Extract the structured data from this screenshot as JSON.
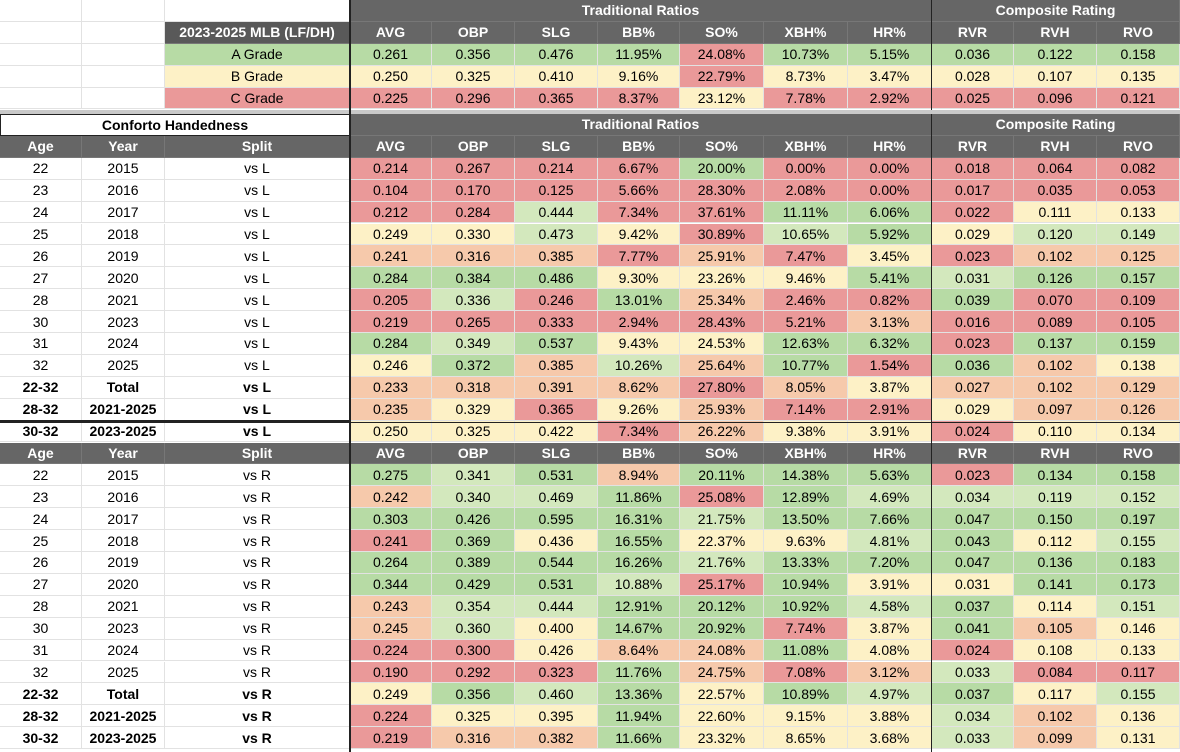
{
  "colors": {
    "green": "#b7dba5",
    "lgreen": "#d3e8bd",
    "yellow": "#fdf1c6",
    "peach": "#f6c9ab",
    "red": "#ea9999",
    "header": "#666666"
  },
  "grade_table": {
    "title": "2023-2025 MLB (LF/DH)",
    "section_headers": [
      "Traditional Ratios",
      "Composite Rating"
    ],
    "columns": [
      "AVG",
      "OBP",
      "SLG",
      "BB%",
      "SO%",
      "XBH%",
      "HR%",
      "RVR",
      "RVH",
      "RVO"
    ],
    "rows": [
      {
        "label": "A Grade",
        "color": "green",
        "values": [
          "0.261",
          "0.356",
          "0.476",
          "11.95%",
          "24.08%",
          "10.73%",
          "5.15%",
          "0.036",
          "0.122",
          "0.158"
        ],
        "colors": [
          "green",
          "green",
          "green",
          "green",
          "red",
          "green",
          "green",
          "green",
          "green",
          "green"
        ]
      },
      {
        "label": "B Grade",
        "color": "yellow",
        "values": [
          "0.250",
          "0.325",
          "0.410",
          "9.16%",
          "22.79%",
          "8.73%",
          "3.47%",
          "0.028",
          "0.107",
          "0.135"
        ],
        "colors": [
          "yellow",
          "yellow",
          "yellow",
          "yellow",
          "red",
          "yellow",
          "yellow",
          "yellow",
          "yellow",
          "yellow"
        ]
      },
      {
        "label": "C Grade",
        "color": "red",
        "values": [
          "0.225",
          "0.296",
          "0.365",
          "8.37%",
          "23.12%",
          "7.78%",
          "2.92%",
          "0.025",
          "0.096",
          "0.121"
        ],
        "colors": [
          "red",
          "red",
          "red",
          "red",
          "yellow",
          "red",
          "red",
          "red",
          "red",
          "red"
        ]
      }
    ]
  },
  "handedness": {
    "title": "Conforto Handedness",
    "section_headers": [
      "Traditional Ratios",
      "Composite Rating"
    ],
    "blocks": [
      {
        "headers": [
          "Age",
          "Year",
          "Split",
          "AVG",
          "OBP",
          "SLG",
          "BB%",
          "SO%",
          "XBH%",
          "HR%",
          "RVR",
          "RVH",
          "RVO"
        ],
        "rows": [
          {
            "age": "22",
            "year": "2015",
            "split": "vs L",
            "values": [
              "0.214",
              "0.267",
              "0.214",
              "6.67%",
              "20.00%",
              "0.00%",
              "0.00%",
              "0.018",
              "0.064",
              "0.082"
            ],
            "colors": [
              "red",
              "red",
              "red",
              "red",
              "green",
              "red",
              "red",
              "red",
              "red",
              "red"
            ]
          },
          {
            "age": "23",
            "year": "2016",
            "split": "vs L",
            "values": [
              "0.104",
              "0.170",
              "0.125",
              "5.66%",
              "28.30%",
              "2.08%",
              "0.00%",
              "0.017",
              "0.035",
              "0.053"
            ],
            "colors": [
              "red",
              "red",
              "red",
              "red",
              "red",
              "red",
              "red",
              "red",
              "red",
              "red"
            ]
          },
          {
            "age": "24",
            "year": "2017",
            "split": "vs L",
            "values": [
              "0.212",
              "0.284",
              "0.444",
              "7.34%",
              "37.61%",
              "11.11%",
              "6.06%",
              "0.022",
              "0.111",
              "0.133"
            ],
            "colors": [
              "red",
              "red",
              "lgreen",
              "red",
              "red",
              "green",
              "green",
              "red",
              "yellow",
              "yellow"
            ]
          },
          {
            "age": "25",
            "year": "2018",
            "split": "vs L",
            "values": [
              "0.249",
              "0.330",
              "0.473",
              "9.42%",
              "30.89%",
              "10.65%",
              "5.92%",
              "0.029",
              "0.120",
              "0.149"
            ],
            "colors": [
              "yellow",
              "yellow",
              "lgreen",
              "yellow",
              "red",
              "lgreen",
              "green",
              "yellow",
              "lgreen",
              "lgreen"
            ]
          },
          {
            "age": "26",
            "year": "2019",
            "split": "vs L",
            "values": [
              "0.241",
              "0.316",
              "0.385",
              "7.77%",
              "25.91%",
              "7.47%",
              "3.45%",
              "0.023",
              "0.102",
              "0.125"
            ],
            "colors": [
              "peach",
              "peach",
              "peach",
              "red",
              "peach",
              "red",
              "yellow",
              "red",
              "peach",
              "peach"
            ]
          },
          {
            "age": "27",
            "year": "2020",
            "split": "vs L",
            "values": [
              "0.284",
              "0.384",
              "0.486",
              "9.30%",
              "23.26%",
              "9.46%",
              "5.41%",
              "0.031",
              "0.126",
              "0.157"
            ],
            "colors": [
              "green",
              "green",
              "green",
              "yellow",
              "yellow",
              "yellow",
              "green",
              "lgreen",
              "green",
              "green"
            ]
          },
          {
            "age": "28",
            "year": "2021",
            "split": "vs L",
            "values": [
              "0.205",
              "0.336",
              "0.246",
              "13.01%",
              "25.34%",
              "2.46%",
              "0.82%",
              "0.039",
              "0.070",
              "0.109"
            ],
            "colors": [
              "red",
              "lgreen",
              "red",
              "green",
              "peach",
              "red",
              "red",
              "green",
              "red",
              "red"
            ]
          },
          {
            "age": "30",
            "year": "2023",
            "split": "vs L",
            "values": [
              "0.219",
              "0.265",
              "0.333",
              "2.94%",
              "28.43%",
              "5.21%",
              "3.13%",
              "0.016",
              "0.089",
              "0.105"
            ],
            "colors": [
              "red",
              "red",
              "red",
              "red",
              "red",
              "red",
              "peach",
              "red",
              "red",
              "red"
            ]
          },
          {
            "age": "31",
            "year": "2024",
            "split": "vs L",
            "values": [
              "0.284",
              "0.349",
              "0.537",
              "9.43%",
              "24.53%",
              "12.63%",
              "6.32%",
              "0.023",
              "0.137",
              "0.159"
            ],
            "colors": [
              "green",
              "lgreen",
              "green",
              "yellow",
              "yellow",
              "green",
              "green",
              "red",
              "green",
              "green"
            ]
          },
          {
            "age": "32",
            "year": "2025",
            "split": "vs L",
            "values": [
              "0.246",
              "0.372",
              "0.385",
              "10.26%",
              "25.64%",
              "10.77%",
              "1.54%",
              "0.036",
              "0.102",
              "0.138"
            ],
            "colors": [
              "yellow",
              "green",
              "peach",
              "lgreen",
              "peach",
              "green",
              "red",
              "green",
              "peach",
              "yellow"
            ]
          },
          {
            "age": "22-32",
            "year": "Total",
            "split": "vs L",
            "bold": true,
            "values": [
              "0.233",
              "0.318",
              "0.391",
              "8.62%",
              "27.80%",
              "8.05%",
              "3.87%",
              "0.027",
              "0.102",
              "0.129"
            ],
            "colors": [
              "peach",
              "peach",
              "peach",
              "peach",
              "red",
              "peach",
              "yellow",
              "peach",
              "peach",
              "peach"
            ]
          },
          {
            "age": "28-32",
            "year": "2021-2025",
            "split": "vs L",
            "bold": true,
            "values": [
              "0.235",
              "0.329",
              "0.365",
              "9.26%",
              "25.93%",
              "7.14%",
              "2.91%",
              "0.029",
              "0.097",
              "0.126"
            ],
            "colors": [
              "peach",
              "yellow",
              "red",
              "yellow",
              "peach",
              "red",
              "red",
              "yellow",
              "peach",
              "peach"
            ]
          },
          {
            "age": "30-32",
            "year": "2023-2025",
            "split": "vs L",
            "bold": true,
            "values": [
              "0.250",
              "0.325",
              "0.422",
              "7.34%",
              "26.22%",
              "9.38%",
              "3.91%",
              "0.024",
              "0.110",
              "0.134"
            ],
            "colors": [
              "yellow",
              "yellow",
              "yellow",
              "red",
              "peach",
              "yellow",
              "yellow",
              "red",
              "yellow",
              "yellow"
            ]
          }
        ]
      },
      {
        "headers": [
          "Age",
          "Year",
          "Split",
          "AVG",
          "OBP",
          "SLG",
          "BB%",
          "SO%",
          "XBH%",
          "HR%",
          "RVR",
          "RVH",
          "RVO"
        ],
        "rows": [
          {
            "age": "22",
            "year": "2015",
            "split": "vs R",
            "values": [
              "0.275",
              "0.341",
              "0.531",
              "8.94%",
              "20.11%",
              "14.38%",
              "5.63%",
              "0.023",
              "0.134",
              "0.158"
            ],
            "colors": [
              "green",
              "lgreen",
              "green",
              "peach",
              "green",
              "green",
              "green",
              "red",
              "green",
              "green"
            ]
          },
          {
            "age": "23",
            "year": "2016",
            "split": "vs R",
            "values": [
              "0.242",
              "0.340",
              "0.469",
              "11.86%",
              "25.08%",
              "12.89%",
              "4.69%",
              "0.034",
              "0.119",
              "0.152"
            ],
            "colors": [
              "peach",
              "lgreen",
              "lgreen",
              "green",
              "red",
              "green",
              "lgreen",
              "lgreen",
              "lgreen",
              "lgreen"
            ]
          },
          {
            "age": "24",
            "year": "2017",
            "split": "vs R",
            "values": [
              "0.303",
              "0.426",
              "0.595",
              "16.31%",
              "21.75%",
              "13.50%",
              "7.66%",
              "0.047",
              "0.150",
              "0.197"
            ],
            "colors": [
              "green",
              "green",
              "green",
              "green",
              "lgreen",
              "green",
              "green",
              "green",
              "green",
              "green"
            ]
          },
          {
            "age": "25",
            "year": "2018",
            "split": "vs R",
            "values": [
              "0.241",
              "0.369",
              "0.436",
              "16.55%",
              "22.37%",
              "9.63%",
              "4.81%",
              "0.043",
              "0.112",
              "0.155"
            ],
            "colors": [
              "red",
              "green",
              "yellow",
              "green",
              "yellow",
              "yellow",
              "lgreen",
              "green",
              "yellow",
              "lgreen"
            ]
          },
          {
            "age": "26",
            "year": "2019",
            "split": "vs R",
            "values": [
              "0.264",
              "0.389",
              "0.544",
              "16.26%",
              "21.76%",
              "13.33%",
              "7.20%",
              "0.047",
              "0.136",
              "0.183"
            ],
            "colors": [
              "green",
              "green",
              "green",
              "green",
              "lgreen",
              "green",
              "green",
              "green",
              "green",
              "green"
            ]
          },
          {
            "age": "27",
            "year": "2020",
            "split": "vs R",
            "values": [
              "0.344",
              "0.429",
              "0.531",
              "10.88%",
              "25.17%",
              "10.94%",
              "3.91%",
              "0.031",
              "0.141",
              "0.173"
            ],
            "colors": [
              "green",
              "green",
              "green",
              "lgreen",
              "red",
              "green",
              "yellow",
              "yellow",
              "green",
              "green"
            ]
          },
          {
            "age": "28",
            "year": "2021",
            "split": "vs R",
            "values": [
              "0.243",
              "0.354",
              "0.444",
              "12.91%",
              "20.12%",
              "10.92%",
              "4.58%",
              "0.037",
              "0.114",
              "0.151"
            ],
            "colors": [
              "peach",
              "lgreen",
              "lgreen",
              "green",
              "green",
              "green",
              "lgreen",
              "green",
              "yellow",
              "lgreen"
            ]
          },
          {
            "age": "30",
            "year": "2023",
            "split": "vs R",
            "values": [
              "0.245",
              "0.360",
              "0.400",
              "14.67%",
              "20.92%",
              "7.74%",
              "3.87%",
              "0.041",
              "0.105",
              "0.146"
            ],
            "colors": [
              "peach",
              "lgreen",
              "yellow",
              "green",
              "green",
              "red",
              "yellow",
              "green",
              "peach",
              "yellow"
            ]
          },
          {
            "age": "31",
            "year": "2024",
            "split": "vs R",
            "values": [
              "0.224",
              "0.300",
              "0.426",
              "8.64%",
              "24.08%",
              "11.08%",
              "4.08%",
              "0.024",
              "0.108",
              "0.133"
            ],
            "colors": [
              "red",
              "red",
              "yellow",
              "peach",
              "peach",
              "green",
              "yellow",
              "red",
              "yellow",
              "yellow"
            ]
          },
          {
            "age": "32",
            "year": "2025",
            "split": "vs R",
            "values": [
              "0.190",
              "0.292",
              "0.323",
              "11.76%",
              "24.75%",
              "7.08%",
              "3.12%",
              "0.033",
              "0.084",
              "0.117"
            ],
            "colors": [
              "red",
              "red",
              "red",
              "green",
              "peach",
              "red",
              "peach",
              "lgreen",
              "red",
              "red"
            ]
          },
          {
            "age": "22-32",
            "year": "Total",
            "split": "vs R",
            "bold": true,
            "values": [
              "0.249",
              "0.356",
              "0.460",
              "13.36%",
              "22.57%",
              "10.89%",
              "4.97%",
              "0.037",
              "0.117",
              "0.155"
            ],
            "colors": [
              "yellow",
              "green",
              "lgreen",
              "green",
              "yellow",
              "green",
              "lgreen",
              "green",
              "yellow",
              "lgreen"
            ]
          },
          {
            "age": "28-32",
            "year": "2021-2025",
            "split": "vs R",
            "bold": true,
            "values": [
              "0.224",
              "0.325",
              "0.395",
              "11.94%",
              "22.60%",
              "9.15%",
              "3.88%",
              "0.034",
              "0.102",
              "0.136"
            ],
            "colors": [
              "red",
              "yellow",
              "yellow",
              "green",
              "yellow",
              "yellow",
              "yellow",
              "lgreen",
              "peach",
              "yellow"
            ]
          },
          {
            "age": "30-32",
            "year": "2023-2025",
            "split": "vs R",
            "bold": true,
            "values": [
              "0.219",
              "0.316",
              "0.382",
              "11.66%",
              "23.32%",
              "8.65%",
              "3.68%",
              "0.033",
              "0.099",
              "0.131"
            ],
            "colors": [
              "red",
              "peach",
              "peach",
              "green",
              "yellow",
              "yellow",
              "yellow",
              "lgreen",
              "peach",
              "yellow"
            ]
          }
        ]
      }
    ]
  }
}
